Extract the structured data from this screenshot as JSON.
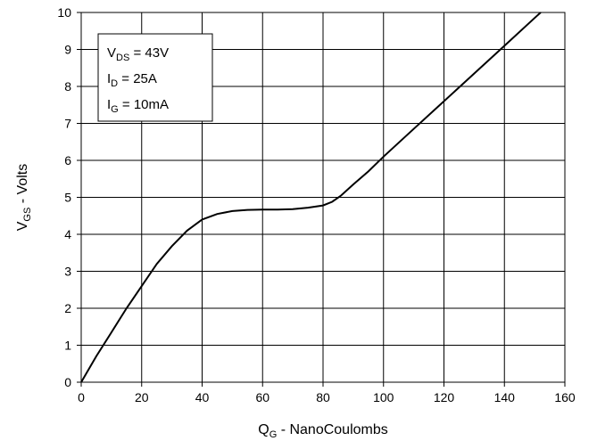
{
  "chart_data": {
    "type": "line",
    "xlabel_main": "Q",
    "xlabel_sub": "G",
    "xlabel_rest": " - NanoCoulombs",
    "ylabel_main": "V",
    "ylabel_sub": "GS",
    "ylabel_rest": " - Volts",
    "xlim": [
      0,
      160
    ],
    "ylim": [
      0,
      10
    ],
    "xticks": [
      0,
      20,
      40,
      60,
      80,
      100,
      120,
      140,
      160
    ],
    "yticks": [
      0,
      1,
      2,
      3,
      4,
      5,
      6,
      7,
      8,
      9,
      10
    ],
    "grid": true,
    "series": [
      {
        "x": [
          0,
          5,
          10,
          15,
          20,
          25,
          30,
          35,
          40,
          45,
          50,
          55,
          60,
          65,
          70,
          75,
          80,
          83,
          86,
          90,
          95,
          100,
          110,
          120,
          130,
          140,
          150,
          152
        ],
        "y": [
          0,
          0.7,
          1.35,
          2.0,
          2.6,
          3.2,
          3.68,
          4.1,
          4.4,
          4.55,
          4.63,
          4.66,
          4.67,
          4.67,
          4.68,
          4.72,
          4.78,
          4.88,
          5.05,
          5.35,
          5.7,
          6.1,
          6.85,
          7.6,
          8.35,
          9.1,
          9.85,
          10.0
        ]
      }
    ],
    "legend": {
      "placement": "top-left",
      "entries": [
        {
          "main": "V",
          "sub": "DS",
          "rest": " = 43V"
        },
        {
          "main": "I",
          "sub": "D",
          "rest": " = 25A"
        },
        {
          "main": "I",
          "sub": "G",
          "rest": " = 10mA"
        }
      ]
    }
  }
}
